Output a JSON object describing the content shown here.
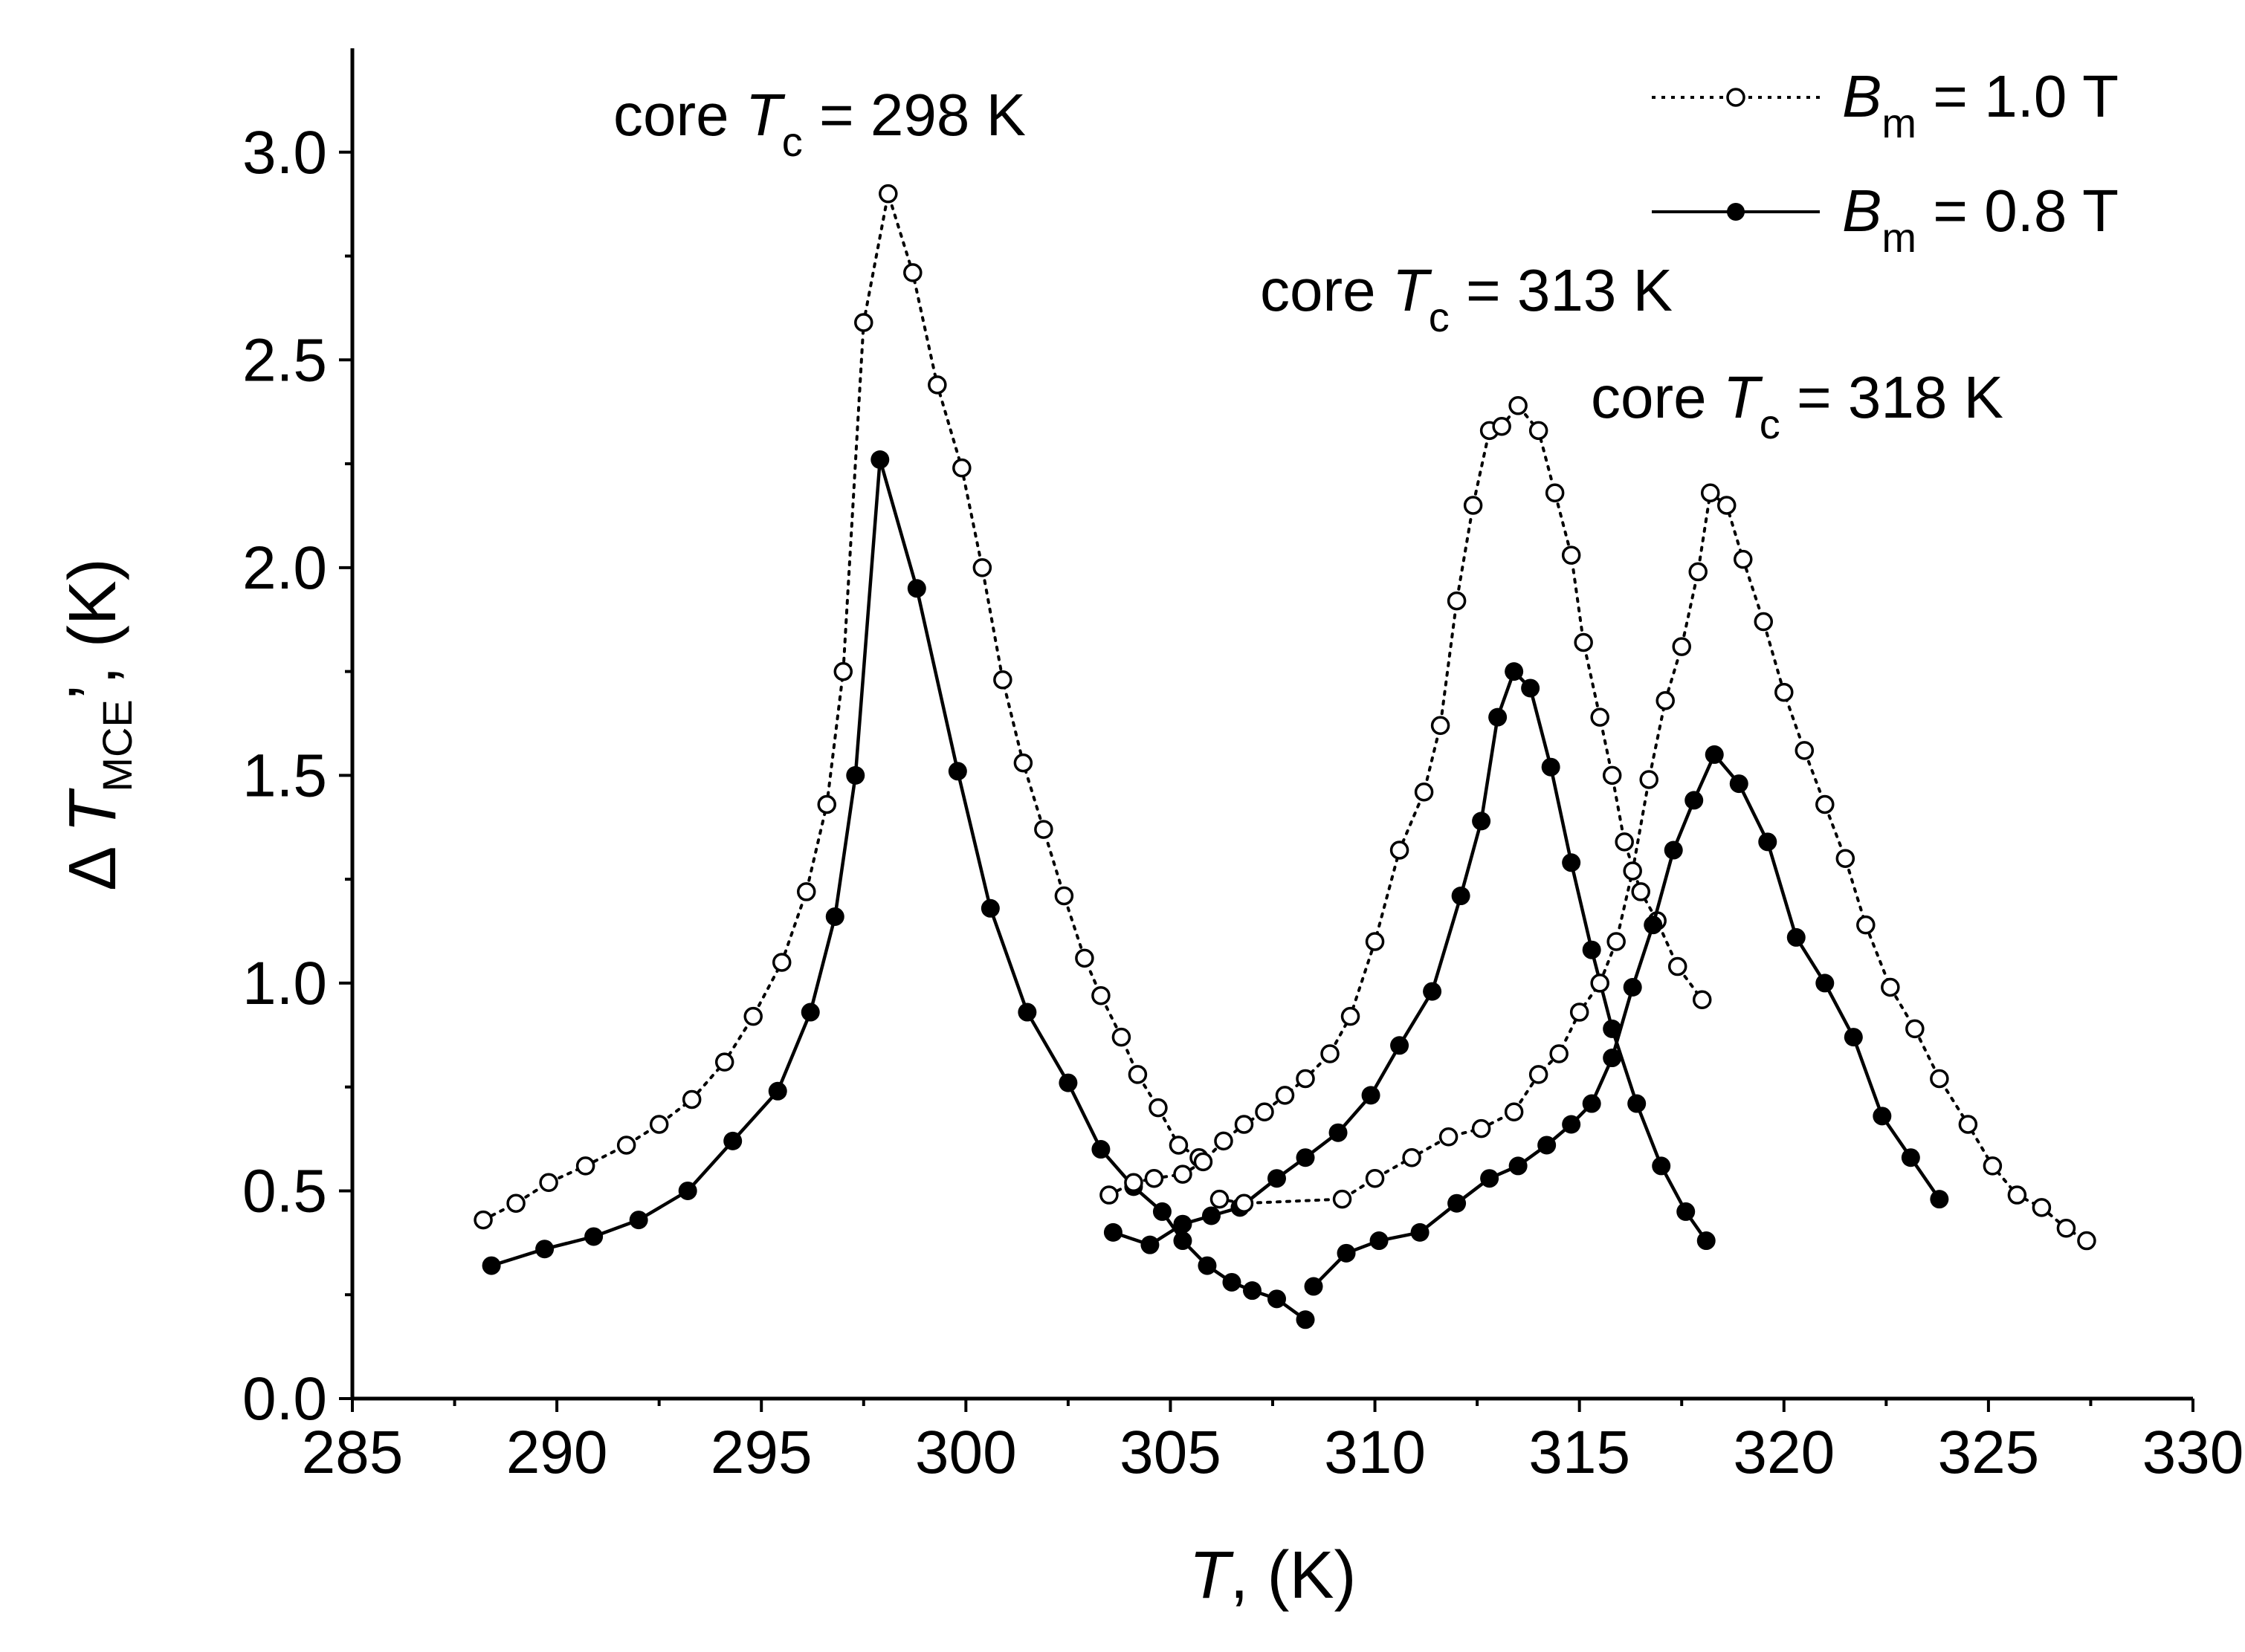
{
  "chart_data": {
    "type": "line",
    "title": "",
    "xlabel": {
      "symbol": "T",
      "suffix": ", (K)"
    },
    "ylabel": {
      "prefix": "Δ",
      "symbol": "T",
      "subscript": "MCE",
      "suffix": "’, (K)"
    },
    "xlim": [
      285,
      330
    ],
    "ylim": [
      0.0,
      3.25
    ],
    "x_ticks": [
      "285",
      "290",
      "295",
      "300",
      "305",
      "310",
      "315",
      "320",
      "325",
      "330"
    ],
    "y_ticks": [
      "0.0",
      "0.5",
      "1.0",
      "1.5",
      "2.0",
      "2.5",
      "3.0"
    ],
    "grid": false,
    "legend": {
      "position": "top-right",
      "entries": [
        {
          "symbol": "B",
          "subscript": "m",
          "text": " = 1.0 T",
          "style": "dotted-open-circle"
        },
        {
          "symbol": "B",
          "subscript": "m",
          "text": " = 0.8 T",
          "style": "solid-filled-circle"
        }
      ]
    },
    "annotations": [
      {
        "prefix": "core ",
        "symbol": "T",
        "subscript": "c",
        "text": " = 298 K",
        "x": 297.6,
        "y": 3.03
      },
      {
        "prefix": "core ",
        "symbol": "T",
        "subscript": "c",
        "text": " = 313 K",
        "x": 313.5,
        "y": 2.6
      },
      {
        "prefix": "core ",
        "symbol": "T",
        "subscript": "c",
        "text": " = 318 K",
        "x": 321.3,
        "y": 2.34
      }
    ],
    "series": [
      {
        "name": "Bm = 1.0 T, core Tc = 298 K",
        "style": "dotted-open-circle",
        "x": [
          288.2,
          289.0,
          289.8,
          290.7,
          291.7,
          292.5,
          293.3,
          294.1,
          294.8,
          295.5,
          296.1,
          296.6,
          297.0,
          297.5,
          298.1,
          298.7,
          299.3,
          299.9,
          300.4,
          300.9,
          301.4,
          301.9,
          302.4,
          302.9,
          303.3,
          303.8,
          304.2,
          304.7,
          305.2,
          305.7
        ],
        "y": [
          0.43,
          0.47,
          0.52,
          0.56,
          0.61,
          0.66,
          0.72,
          0.81,
          0.92,
          1.05,
          1.22,
          1.43,
          1.75,
          2.59,
          2.9,
          2.71,
          2.44,
          2.24,
          2.0,
          1.73,
          1.53,
          1.37,
          1.21,
          1.06,
          0.97,
          0.87,
          0.78,
          0.7,
          0.61,
          0.58
        ]
      },
      {
        "name": "Bm = 0.8 T, core Tc = 298 K",
        "style": "solid-filled-circle",
        "x": [
          288.4,
          289.7,
          290.9,
          292.0,
          293.2,
          294.3,
          295.4,
          296.2,
          296.8,
          297.3,
          297.9,
          298.8,
          299.8,
          300.6,
          301.5,
          302.5,
          303.3,
          304.1,
          304.8,
          305.3,
          305.9,
          306.5,
          307.0,
          307.6,
          308.3
        ],
        "y": [
          0.32,
          0.36,
          0.39,
          0.43,
          0.5,
          0.62,
          0.74,
          0.93,
          1.16,
          1.5,
          2.26,
          1.95,
          1.51,
          1.18,
          0.93,
          0.76,
          0.6,
          0.51,
          0.45,
          0.38,
          0.32,
          0.28,
          0.26,
          0.24,
          0.19
        ]
      },
      {
        "name": "Bm = 1.0 T, core Tc = 313 K",
        "style": "dotted-open-circle",
        "x": [
          303.5,
          304.1,
          304.6,
          305.3,
          305.8,
          306.3,
          306.8,
          307.3,
          307.8,
          308.3,
          308.9,
          309.4,
          310.0,
          310.6,
          311.2,
          311.6,
          312.0,
          312.4,
          312.8,
          313.1,
          313.5,
          314.0,
          314.4,
          314.8,
          315.1,
          315.5,
          315.8,
          316.1,
          316.5,
          316.9,
          317.4,
          318.0
        ],
        "y": [
          0.49,
          0.52,
          0.53,
          0.54,
          0.57,
          0.62,
          0.66,
          0.69,
          0.73,
          0.77,
          0.83,
          0.92,
          1.1,
          1.32,
          1.46,
          1.62,
          1.92,
          2.15,
          2.33,
          2.34,
          2.39,
          2.33,
          2.18,
          2.03,
          1.82,
          1.64,
          1.5,
          1.34,
          1.22,
          1.15,
          1.04,
          0.96
        ]
      },
      {
        "name": "Bm = 0.8 T, core Tc = 313 K",
        "style": "solid-filled-circle",
        "x": [
          303.6,
          304.5,
          305.3,
          306.0,
          306.7,
          307.6,
          308.3,
          309.1,
          309.9,
          310.6,
          311.4,
          312.1,
          312.6,
          313.0,
          313.4,
          313.8,
          314.3,
          314.8,
          315.3,
          315.8,
          316.4,
          317.0,
          317.6,
          318.1
        ],
        "y": [
          0.4,
          0.37,
          0.42,
          0.44,
          0.46,
          0.53,
          0.58,
          0.64,
          0.73,
          0.85,
          0.98,
          1.21,
          1.39,
          1.64,
          1.75,
          1.71,
          1.52,
          1.29,
          1.08,
          0.89,
          0.71,
          0.56,
          0.45,
          0.38
        ]
      },
      {
        "name": "Bm = 1.0 T, core Tc = 318 K",
        "style": "dotted-open-circle",
        "x": [
          306.2,
          306.8,
          309.2,
          310.0,
          310.9,
          311.8,
          312.6,
          313.4,
          314.0,
          314.5,
          315.0,
          315.5,
          315.9,
          316.3,
          316.7,
          317.1,
          317.5,
          317.9,
          318.2,
          318.6,
          319.0,
          319.5,
          320.0,
          320.5,
          321.0,
          321.5,
          322.0,
          322.6,
          323.2,
          323.8,
          324.5,
          325.1,
          325.7,
          326.3,
          326.9,
          327.4
        ],
        "y": [
          0.48,
          0.47,
          0.48,
          0.53,
          0.58,
          0.63,
          0.65,
          0.69,
          0.78,
          0.83,
          0.93,
          1.0,
          1.1,
          1.27,
          1.49,
          1.68,
          1.81,
          1.99,
          2.18,
          2.15,
          2.02,
          1.87,
          1.7,
          1.56,
          1.43,
          1.3,
          1.14,
          0.99,
          0.89,
          0.77,
          0.66,
          0.56,
          0.49,
          0.46,
          0.41,
          0.38
        ]
      },
      {
        "name": "Bm = 0.8 T, core Tc = 318 K",
        "style": "solid-filled-circle",
        "x": [
          308.5,
          309.3,
          310.1,
          311.1,
          312.0,
          312.8,
          313.5,
          314.2,
          314.8,
          315.3,
          315.8,
          316.3,
          316.8,
          317.3,
          317.8,
          318.3,
          318.9,
          319.6,
          320.3,
          321.0,
          321.7,
          322.4,
          323.1,
          323.8
        ],
        "y": [
          0.27,
          0.35,
          0.38,
          0.4,
          0.47,
          0.53,
          0.56,
          0.61,
          0.66,
          0.71,
          0.82,
          0.99,
          1.14,
          1.32,
          1.44,
          1.55,
          1.48,
          1.34,
          1.11,
          1.0,
          0.87,
          0.68,
          0.58,
          0.48
        ]
      }
    ]
  }
}
